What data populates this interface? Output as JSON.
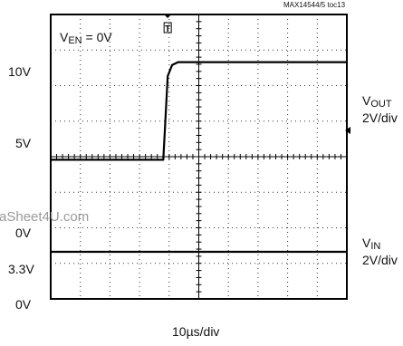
{
  "chart_data": {
    "type": "line",
    "figure_id": "MAX14544/5 toc13",
    "annotation": {
      "prefix": "V",
      "sub": "EN",
      "suffix": " = 0V"
    },
    "time_scale": "10µs/div",
    "grid": true,
    "x_divisions": 10,
    "y_divisions": 8,
    "channels": [
      {
        "name": "VOUT",
        "label": {
          "main": "V",
          "sub": "OUT",
          "scale": "2V/div"
        },
        "tick_labels": [
          "10V",
          "5V"
        ],
        "x_us": [
          0,
          38,
          39.5,
          41,
          43,
          100
        ],
        "y_V": [
          4.0,
          4.0,
          10.0,
          10.8,
          11.0,
          11.0
        ]
      },
      {
        "name": "VIN",
        "label": {
          "main": "V",
          "sub": "IN",
          "scale": "2V/div"
        },
        "tick_labels": [
          "0V",
          "3.3V",
          "0V"
        ],
        "x_us": [
          0,
          100
        ],
        "y_V": [
          3.3,
          3.3
        ]
      }
    ]
  },
  "watermark": "aSheet4U.com"
}
